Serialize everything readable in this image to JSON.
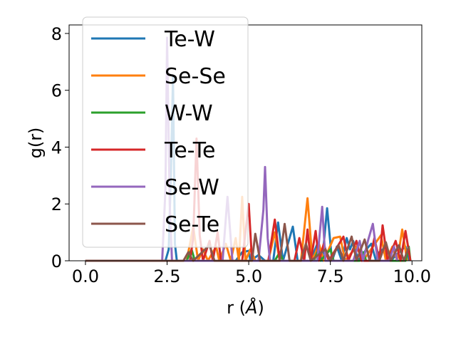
{
  "chart_data": {
    "type": "line",
    "xlabel": "r (",
    "xlabel_unit": "Å",
    "xlabel_close": ")",
    "ylabel": "g(r)",
    "xlim": [
      -0.5,
      10.3
    ],
    "ylim": [
      0,
      8.3
    ],
    "xticks": [
      0.0,
      2.5,
      5.0,
      7.5,
      10.0
    ],
    "xtick_labels": [
      "0.0",
      "2.5",
      "5.0",
      "7.5",
      "10.0"
    ],
    "yticks": [
      0,
      2,
      4,
      6,
      8
    ],
    "ytick_labels": [
      "0",
      "2",
      "4",
      "6",
      "8"
    ],
    "grid": false,
    "legend_position": "top-left",
    "series": [
      {
        "name": "Te-W",
        "color": "#1f77b4",
        "points": [
          [
            0,
            0
          ],
          [
            2.45,
            0
          ],
          [
            2.55,
            0.4
          ],
          [
            2.62,
            3.2
          ],
          [
            2.68,
            6.5
          ],
          [
            2.74,
            0.6
          ],
          [
            2.8,
            0
          ],
          [
            4.6,
            0
          ],
          [
            4.8,
            0.3
          ],
          [
            5.0,
            0.35
          ],
          [
            5.05,
            0
          ],
          [
            5.3,
            0.2
          ],
          [
            5.5,
            0
          ],
          [
            5.75,
            0
          ],
          [
            5.9,
            1.35
          ],
          [
            6.05,
            0
          ],
          [
            6.2,
            0.6
          ],
          [
            6.35,
            1.2
          ],
          [
            6.5,
            0
          ],
          [
            6.9,
            0
          ],
          [
            7.1,
            0.6
          ],
          [
            7.25,
            0
          ],
          [
            7.4,
            1.85
          ],
          [
            7.55,
            0
          ],
          [
            7.7,
            0.5
          ],
          [
            7.85,
            0
          ],
          [
            8.0,
            0.8
          ],
          [
            8.1,
            0.4
          ],
          [
            8.2,
            0.7
          ],
          [
            8.35,
            0
          ],
          [
            8.6,
            0.4
          ],
          [
            8.75,
            0.6
          ],
          [
            8.9,
            0
          ],
          [
            9.0,
            0.3
          ],
          [
            9.2,
            0.5
          ],
          [
            9.35,
            0
          ],
          [
            9.6,
            0.3
          ],
          [
            9.8,
            0.5
          ],
          [
            9.9,
            0
          ]
        ]
      },
      {
        "name": "Se-Se",
        "color": "#ff7f0e",
        "points": [
          [
            0,
            0
          ],
          [
            3.1,
            0
          ],
          [
            3.2,
            0.6
          ],
          [
            3.3,
            1.2
          ],
          [
            3.45,
            0
          ],
          [
            3.6,
            0.4
          ],
          [
            3.75,
            0
          ],
          [
            4.0,
            0.5
          ],
          [
            4.1,
            0
          ],
          [
            4.3,
            0.6
          ],
          [
            4.45,
            0
          ],
          [
            4.6,
            0.8
          ],
          [
            4.7,
            0
          ],
          [
            4.8,
            2.25
          ],
          [
            4.9,
            0
          ],
          [
            5.05,
            0.4
          ],
          [
            5.2,
            0
          ],
          [
            5.6,
            0
          ],
          [
            5.8,
            1.0
          ],
          [
            5.95,
            0
          ],
          [
            6.6,
            0
          ],
          [
            6.8,
            2.2
          ],
          [
            6.95,
            0
          ],
          [
            7.15,
            0.6
          ],
          [
            7.3,
            0
          ],
          [
            7.6,
            0.8
          ],
          [
            7.8,
            0.85
          ],
          [
            7.95,
            0
          ],
          [
            8.3,
            0.5
          ],
          [
            8.5,
            0
          ],
          [
            9.05,
            0.9
          ],
          [
            9.2,
            0
          ],
          [
            9.4,
            0.5
          ],
          [
            9.55,
            0
          ],
          [
            9.7,
            1.1
          ],
          [
            9.85,
            0
          ]
        ]
      },
      {
        "name": "W-W",
        "color": "#2ca02c",
        "points": [
          [
            0,
            0
          ],
          [
            3.1,
            0
          ],
          [
            3.25,
            0.4
          ],
          [
            3.35,
            0
          ],
          [
            5.8,
            0
          ],
          [
            5.95,
            0.3
          ],
          [
            6.05,
            0
          ],
          [
            7.0,
            0
          ],
          [
            7.1,
            0.3
          ],
          [
            7.2,
            0
          ],
          [
            7.5,
            0.4
          ],
          [
            7.6,
            0
          ],
          [
            8.4,
            0
          ],
          [
            8.5,
            0.3
          ],
          [
            8.6,
            0
          ],
          [
            9.8,
            0
          ],
          [
            9.9,
            0.5
          ],
          [
            9.95,
            0
          ]
        ]
      },
      {
        "name": "Te-Te",
        "color": "#d62728",
        "points": [
          [
            0,
            0
          ],
          [
            3.2,
            0
          ],
          [
            3.3,
            0.8
          ],
          [
            3.4,
            4.3
          ],
          [
            3.5,
            0.9
          ],
          [
            3.6,
            0
          ],
          [
            3.8,
            0.7
          ],
          [
            3.9,
            0
          ],
          [
            4.05,
            1.0
          ],
          [
            4.15,
            0
          ],
          [
            4.8,
            0
          ],
          [
            5.0,
            2.0
          ],
          [
            5.1,
            0
          ],
          [
            5.6,
            0
          ],
          [
            5.8,
            1.45
          ],
          [
            5.95,
            0
          ],
          [
            6.4,
            0
          ],
          [
            6.55,
            0.8
          ],
          [
            6.7,
            0
          ],
          [
            6.8,
            1.1
          ],
          [
            6.9,
            0
          ],
          [
            7.05,
            1.05
          ],
          [
            7.15,
            0
          ],
          [
            7.3,
            0.6
          ],
          [
            7.45,
            0
          ],
          [
            7.9,
            0.85
          ],
          [
            8.05,
            0
          ],
          [
            8.3,
            0.7
          ],
          [
            8.45,
            0
          ],
          [
            8.7,
            0
          ],
          [
            8.85,
            0.8
          ],
          [
            9.0,
            0
          ],
          [
            9.1,
            1.25
          ],
          [
            9.25,
            0
          ],
          [
            9.5,
            0.7
          ],
          [
            9.65,
            0
          ],
          [
            9.8,
            1.05
          ],
          [
            9.95,
            0
          ]
        ]
      },
      {
        "name": "Se-W",
        "color": "#9467bd",
        "points": [
          [
            0,
            0
          ],
          [
            2.35,
            0
          ],
          [
            2.45,
            2.5
          ],
          [
            2.5,
            7.85
          ],
          [
            2.58,
            2.0
          ],
          [
            2.65,
            0
          ],
          [
            4.2,
            0
          ],
          [
            4.35,
            2.25
          ],
          [
            4.5,
            0
          ],
          [
            5.3,
            0
          ],
          [
            5.45,
            1.8
          ],
          [
            5.5,
            3.3
          ],
          [
            5.58,
            0.8
          ],
          [
            5.65,
            0
          ],
          [
            7.1,
            0
          ],
          [
            7.25,
            1.9
          ],
          [
            7.35,
            0
          ],
          [
            8.2,
            0
          ],
          [
            8.4,
            0.7
          ],
          [
            8.5,
            0
          ],
          [
            8.65,
            0.7
          ],
          [
            8.8,
            1.3
          ],
          [
            8.95,
            0
          ],
          [
            9.3,
            0
          ],
          [
            9.45,
            0.5
          ],
          [
            9.55,
            0
          ]
        ]
      },
      {
        "name": "Se-Te",
        "color": "#8c564b",
        "points": [
          [
            0,
            0
          ],
          [
            3.0,
            0
          ],
          [
            3.15,
            0.3
          ],
          [
            3.3,
            0
          ],
          [
            3.8,
            0.55
          ],
          [
            3.95,
            0
          ],
          [
            5.1,
            0
          ],
          [
            5.2,
            0.95
          ],
          [
            5.35,
            0
          ],
          [
            5.95,
            0
          ],
          [
            6.1,
            1.3
          ],
          [
            6.25,
            0
          ],
          [
            6.6,
            0
          ],
          [
            6.75,
            0.6
          ],
          [
            6.9,
            0
          ],
          [
            7.35,
            0.4
          ],
          [
            7.5,
            0
          ],
          [
            7.75,
            0.55
          ],
          [
            7.9,
            0
          ],
          [
            8.15,
            0.85
          ],
          [
            8.3,
            0
          ],
          [
            8.55,
            0.75
          ],
          [
            8.7,
            0
          ],
          [
            9.0,
            0
          ],
          [
            9.2,
            0.65
          ],
          [
            9.35,
            0
          ],
          [
            9.6,
            0.55
          ],
          [
            9.75,
            0
          ],
          [
            9.9,
            0.5
          ]
        ]
      }
    ]
  }
}
